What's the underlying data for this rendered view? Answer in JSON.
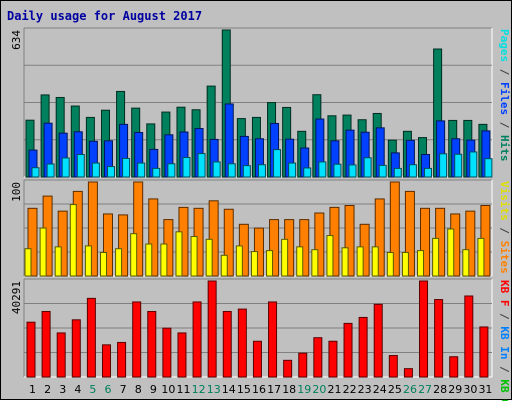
{
  "chart_data": {
    "type": "bar",
    "title": "Daily usage for August 2017",
    "days": [
      "1",
      "2",
      "3",
      "4",
      "5",
      "6",
      "7",
      "8",
      "9",
      "10",
      "11",
      "12",
      "13",
      "14",
      "15",
      "16",
      "17",
      "18",
      "19",
      "20",
      "21",
      "22",
      "23",
      "24",
      "25",
      "26",
      "27",
      "28",
      "29",
      "30",
      "31"
    ],
    "weekend_days": [
      "5",
      "6",
      "12",
      "13",
      "19",
      "20",
      "26",
      "27"
    ],
    "panels": [
      {
        "max_label": "634",
        "ylim": [
          0,
          634
        ],
        "legend": [
          {
            "text": "Pages",
            "color": "#00e0e0"
          },
          {
            "text": " / ",
            "color": "#404040"
          },
          {
            "text": "Files",
            "color": "#0040ff"
          },
          {
            "text": " / ",
            "color": "#404040"
          },
          {
            "text": "Hits",
            "color": "#008060"
          }
        ],
        "series": [
          {
            "name": "Hits",
            "color": "#00805c",
            "values": [
              245,
              354,
              343,
              306,
              257,
              288,
              369,
              297,
              229,
              280,
              301,
              290,
              392,
              634,
              252,
              257,
              321,
              300,
              197,
              355,
              264,
              267,
              247,
              274,
              159,
              197,
              170,
              552,
              244,
              244,
              227
            ]
          },
          {
            "name": "Files",
            "color": "#0040ff",
            "values": [
              116,
              232,
              189,
              195,
              154,
              156,
              227,
              192,
              119,
              182,
              194,
              209,
              162,
              315,
              175,
              165,
              231,
              163,
              125,
              250,
              156,
              202,
              193,
              212,
              104,
              158,
              97,
              242,
              165,
              159,
              199
            ]
          },
          {
            "name": "Pages",
            "color": "#00e0ff",
            "values": [
              40,
              56,
              82,
              97,
              60,
              45,
              80,
              60,
              37,
              57,
              84,
              101,
              65,
              57,
              49,
              53,
              118,
              60,
              39,
              65,
              55,
              52,
              83,
              50,
              37,
              53,
              37,
              100,
              98,
              108,
              79
            ]
          }
        ]
      },
      {
        "max_label": "100",
        "ylim": [
          0,
          100
        ],
        "legend": [
          {
            "text": "Visits",
            "color": "#e0e000"
          },
          {
            "text": " / ",
            "color": "#404040"
          },
          {
            "text": "Sites",
            "color": "#ff8000"
          }
        ],
        "series": [
          {
            "name": "Sites",
            "color": "#ff8000",
            "values": [
              72,
              85,
              69,
              90,
              100,
              66,
              65,
              100,
              82,
              60,
              73,
              72,
              80,
              71,
              55,
              51,
              60,
              60,
              60,
              67,
              73,
              75,
              55,
              82,
              100,
              90,
              72,
              72,
              66,
              69,
              75
            ]
          },
          {
            "name": "Visits",
            "color": "#ffff00",
            "values": [
              29,
              51,
              31,
              76,
              32,
              25,
              29,
              45,
              34,
              34,
              47,
              42,
              39,
              22,
              32,
              26,
              27,
              39,
              31,
              28,
              43,
              30,
              31,
              31,
              25,
              25,
              27,
              40,
              50,
              28,
              40
            ]
          }
        ]
      },
      {
        "max_label": "40291",
        "ylim": [
          0,
          40291
        ],
        "legend": [
          {
            "text": "KB F",
            "color": "#ff0000"
          },
          {
            "text": " / ",
            "color": "#404040"
          },
          {
            "text": "KB In",
            "color": "#0080ff"
          },
          {
            "text": " / ",
            "color": "#404040"
          },
          {
            "text": "KB Out",
            "color": "#00c000"
          }
        ],
        "series": [
          {
            "name": "KB F",
            "color": "#ff0000",
            "values": [
              23000,
              27500,
              18500,
              24000,
              33000,
              13500,
              14500,
              31500,
              27500,
              20500,
              18500,
              31500,
              40291,
              27500,
              28500,
              15000,
              31500,
              7000,
              10000,
              16500,
              15000,
              22500,
              25000,
              30500,
              9000,
              3500,
              40291,
              32500,
              8500,
              34000,
              21000
            ]
          }
        ]
      }
    ]
  }
}
